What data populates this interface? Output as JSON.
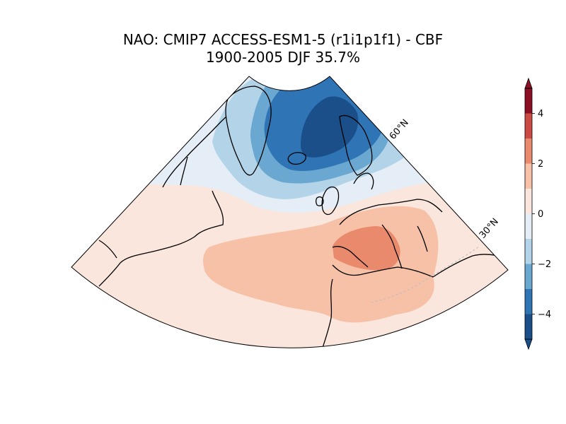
{
  "title": {
    "line1": "NAO: CMIP7 ACCESS-ESM1-5 (r1i1p1f1) - CBF",
    "line2": "1900-2005 DJF 35.7%"
  },
  "map": {
    "projection": "conic sector, North Atlantic / Europe",
    "lat_labels": [
      "60°N",
      "30°N"
    ],
    "coastline_color": "#000000"
  },
  "colorbar": {
    "ticks": [
      "4",
      "2",
      "0",
      "−2",
      "−4"
    ],
    "levels": [
      -5,
      -4,
      -3,
      -2,
      -1,
      0,
      1,
      2,
      3,
      4,
      5
    ],
    "colors": [
      "#1a4f8a",
      "#2f74b4",
      "#6aa8d1",
      "#b3d4e8",
      "#e5eef6",
      "#fae6dc",
      "#f6c1a7",
      "#ea8a6d",
      "#cc4a44",
      "#8b1024"
    ],
    "extend": "both"
  }
}
